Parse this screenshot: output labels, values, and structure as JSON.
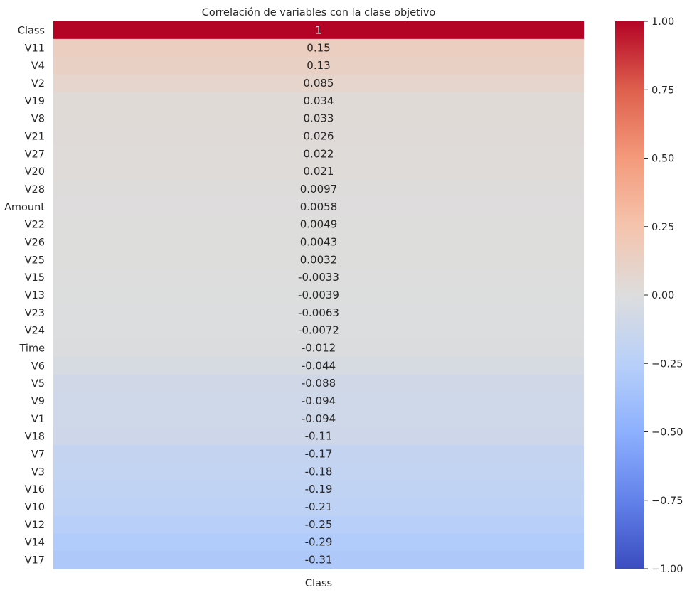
{
  "chart_data": {
    "type": "heatmap",
    "title": "Correlación de variables con la clase objetivo",
    "columns": [
      "Class"
    ],
    "rows": [
      {
        "label": "Class",
        "value": 1.0,
        "text": "1"
      },
      {
        "label": "V11",
        "value": 0.15,
        "text": "0.15"
      },
      {
        "label": "V4",
        "value": 0.13,
        "text": "0.13"
      },
      {
        "label": "V2",
        "value": 0.085,
        "text": "0.085"
      },
      {
        "label": "V19",
        "value": 0.034,
        "text": "0.034"
      },
      {
        "label": "V8",
        "value": 0.033,
        "text": "0.033"
      },
      {
        "label": "V21",
        "value": 0.026,
        "text": "0.026"
      },
      {
        "label": "V27",
        "value": 0.022,
        "text": "0.022"
      },
      {
        "label": "V20",
        "value": 0.021,
        "text": "0.021"
      },
      {
        "label": "V28",
        "value": 0.0097,
        "text": "0.0097"
      },
      {
        "label": "Amount",
        "value": 0.0058,
        "text": "0.0058"
      },
      {
        "label": "V22",
        "value": 0.0049,
        "text": "0.0049"
      },
      {
        "label": "V26",
        "value": 0.0043,
        "text": "0.0043"
      },
      {
        "label": "V25",
        "value": 0.0032,
        "text": "0.0032"
      },
      {
        "label": "V15",
        "value": -0.0033,
        "text": "-0.0033"
      },
      {
        "label": "V13",
        "value": -0.0039,
        "text": "-0.0039"
      },
      {
        "label": "V23",
        "value": -0.0063,
        "text": "-0.0063"
      },
      {
        "label": "V24",
        "value": -0.0072,
        "text": "-0.0072"
      },
      {
        "label": "Time",
        "value": -0.012,
        "text": "-0.012"
      },
      {
        "label": "V6",
        "value": -0.044,
        "text": "-0.044"
      },
      {
        "label": "V5",
        "value": -0.088,
        "text": "-0.088"
      },
      {
        "label": "V9",
        "value": -0.094,
        "text": "-0.094"
      },
      {
        "label": "V1",
        "value": -0.094,
        "text": "-0.094"
      },
      {
        "label": "V18",
        "value": -0.11,
        "text": "-0.11"
      },
      {
        "label": "V7",
        "value": -0.17,
        "text": "-0.17"
      },
      {
        "label": "V3",
        "value": -0.18,
        "text": "-0.18"
      },
      {
        "label": "V16",
        "value": -0.19,
        "text": "-0.19"
      },
      {
        "label": "V10",
        "value": -0.21,
        "text": "-0.21"
      },
      {
        "label": "V12",
        "value": -0.25,
        "text": "-0.25"
      },
      {
        "label": "V14",
        "value": -0.29,
        "text": "-0.29"
      },
      {
        "label": "V17",
        "value": -0.31,
        "text": "-0.31"
      }
    ],
    "colormap": "coolwarm",
    "vmin": -1,
    "vmax": 1,
    "colorbar_ticks": [
      {
        "value": 1.0,
        "text": "1.00"
      },
      {
        "value": 0.75,
        "text": "0.75"
      },
      {
        "value": 0.5,
        "text": "0.50"
      },
      {
        "value": 0.25,
        "text": "0.25"
      },
      {
        "value": 0.0,
        "text": "0.00"
      },
      {
        "value": -0.25,
        "text": "−0.25"
      },
      {
        "value": -0.5,
        "text": "−0.50"
      },
      {
        "value": -0.75,
        "text": "−0.75"
      },
      {
        "value": -1.0,
        "text": "−1.00"
      }
    ],
    "grid": false,
    "legend": "colorbar-right"
  }
}
